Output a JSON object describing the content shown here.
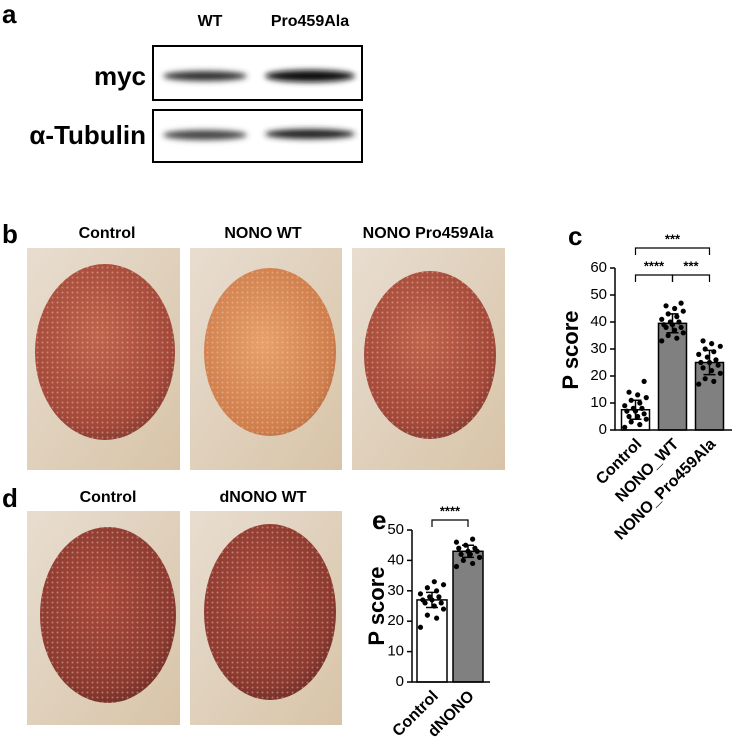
{
  "panels": {
    "a": {
      "label": "a",
      "lanes": [
        "WT",
        "Pro459Ala"
      ],
      "rows": [
        "myc",
        "α-Tubulin"
      ]
    },
    "b": {
      "label": "b",
      "columns": [
        "Control",
        "NONO WT",
        "NONO Pro459Ala"
      ]
    },
    "d": {
      "label": "d",
      "columns": [
        "Control",
        "dNONO WT"
      ]
    }
  },
  "chart_data": [
    {
      "type": "bar",
      "panel_label": "c",
      "ylabel": "P score",
      "categories": [
        "Control",
        "NONO_WT",
        "NONO_Pro459Ala"
      ],
      "values": [
        7.5,
        39.5,
        25
      ],
      "errors": [
        3.5,
        3.5,
        4.5
      ],
      "colors": [
        "#ffffff",
        "#808080",
        "#808080"
      ],
      "points": [
        [
          1,
          2,
          3,
          4,
          5,
          5,
          6,
          7,
          7,
          8,
          8,
          9,
          10,
          11,
          12,
          13,
          14,
          18
        ],
        [
          33,
          34,
          35,
          36,
          37,
          38,
          38,
          39,
          39,
          40,
          40,
          41,
          42,
          43,
          44,
          45,
          46,
          47
        ],
        [
          17,
          18,
          19,
          21,
          22,
          23,
          24,
          25,
          25,
          26,
          27,
          28,
          29,
          30,
          31,
          32,
          33
        ]
      ],
      "ylim": [
        0,
        60
      ],
      "yticks": [
        0,
        10,
        20,
        30,
        40,
        50,
        60
      ],
      "significance": [
        {
          "label": "****",
          "between": [
            0,
            1
          ]
        },
        {
          "label": "***",
          "between": [
            1,
            2
          ]
        },
        {
          "label": "***",
          "between": [
            0,
            2
          ]
        }
      ]
    },
    {
      "type": "bar",
      "panel_label": "e",
      "ylabel": "P score",
      "categories": [
        "Control",
        "dNONO"
      ],
      "values": [
        27,
        43
      ],
      "errors": [
        2.5,
        2
      ],
      "colors": [
        "#ffffff",
        "#808080"
      ],
      "points": [
        [
          18,
          21,
          22,
          24,
          25,
          26,
          26,
          27,
          27,
          28,
          28,
          29,
          30,
          31,
          32,
          33
        ],
        [
          38,
          39,
          40,
          41,
          42,
          42,
          43,
          43,
          44,
          44,
          45,
          46,
          47
        ]
      ],
      "ylim": [
        0,
        50
      ],
      "yticks": [
        0,
        10,
        20,
        30,
        40,
        50
      ],
      "significance": [
        {
          "label": "****",
          "between": [
            0,
            1
          ]
        }
      ]
    }
  ]
}
